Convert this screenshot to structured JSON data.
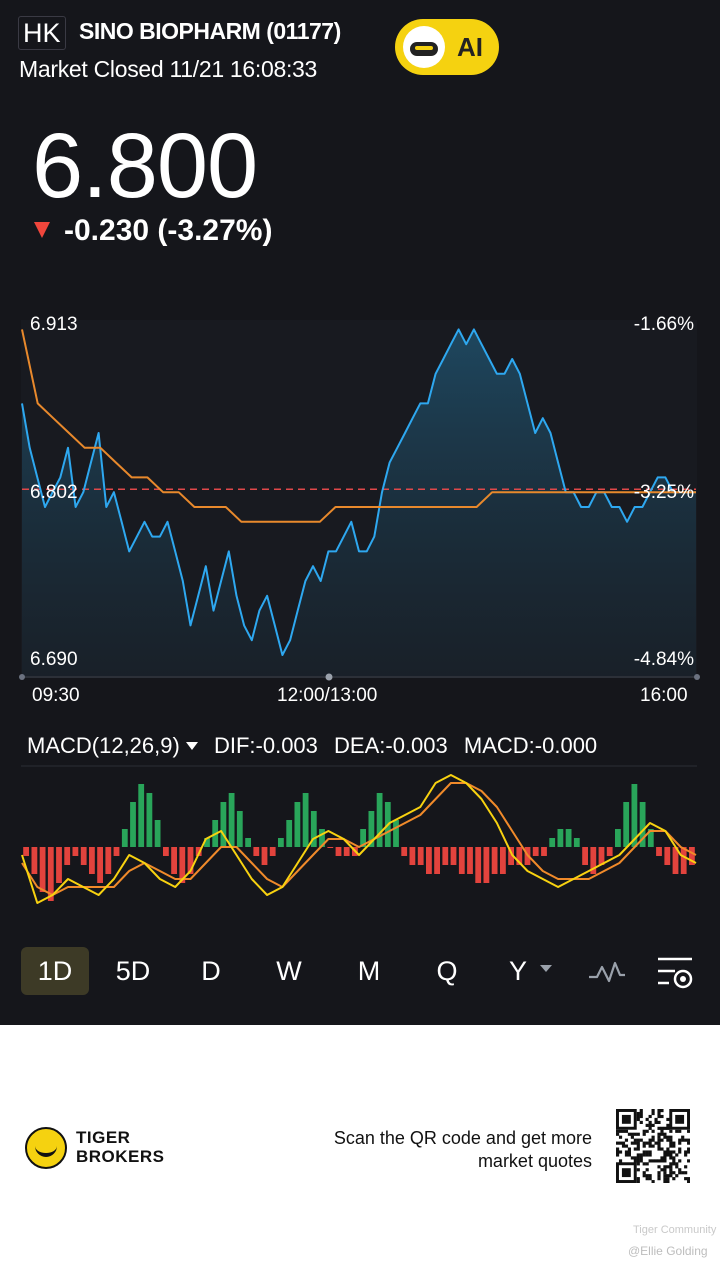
{
  "header": {
    "market": "HK",
    "stock_name": "SINO BIOPHARM (01177)",
    "status": "Market Closed 11/21 16:08:33",
    "ai_label": "AI"
  },
  "quote": {
    "price": "6.800",
    "change": "-0.230 (-3.27%)",
    "direction": "down",
    "down_color": "#f0463c"
  },
  "chart_data": {
    "type": "line",
    "y_left_ticks": [
      "6.913",
      "6.802",
      "6.690"
    ],
    "y_right_ticks": [
      "-1.66%",
      "-3.25%",
      "-4.84%"
    ],
    "x_ticks": [
      "09:30",
      "12:00/13:00",
      "16:00"
    ],
    "ylim": [
      6.69,
      6.913
    ],
    "reference_line": 6.802,
    "series": [
      {
        "color": "#2ea8f0",
        "values": [
          6.86,
          6.83,
          6.81,
          6.79,
          6.8,
          6.81,
          6.83,
          6.79,
          6.8,
          6.82,
          6.84,
          6.79,
          6.8,
          6.78,
          6.76,
          6.77,
          6.78,
          6.77,
          6.77,
          6.78,
          6.76,
          6.74,
          6.71,
          6.73,
          6.75,
          6.72,
          6.74,
          6.76,
          6.73,
          6.71,
          6.7,
          6.72,
          6.73,
          6.71,
          6.69,
          6.7,
          6.72,
          6.74,
          6.75,
          6.74,
          6.76,
          6.76,
          6.77,
          6.78,
          6.76,
          6.76,
          6.77,
          6.8,
          6.82,
          6.83,
          6.84,
          6.85,
          6.86,
          6.86,
          6.88,
          6.89,
          6.9,
          6.91,
          6.9,
          6.91,
          6.9,
          6.89,
          6.88,
          6.88,
          6.89,
          6.88,
          6.86,
          6.84,
          6.85,
          6.84,
          6.82,
          6.8,
          6.8,
          6.79,
          6.79,
          6.8,
          6.8,
          6.79,
          6.79,
          6.78,
          6.79,
          6.79,
          6.8,
          6.81,
          6.81,
          6.8,
          6.8,
          6.8,
          6.8
        ]
      },
      {
        "color": "#e8892c",
        "values": [
          6.91,
          6.86,
          6.85,
          6.84,
          6.83,
          6.83,
          6.82,
          6.81,
          6.81,
          6.8,
          6.8,
          6.79,
          6.79,
          6.79,
          6.78,
          6.78,
          6.78,
          6.78,
          6.78,
          6.78,
          6.79,
          6.79,
          6.79,
          6.79,
          6.79,
          6.79,
          6.79,
          6.79,
          6.79,
          6.79,
          6.8,
          6.8,
          6.8,
          6.8,
          6.8,
          6.8,
          6.8,
          6.8,
          6.8,
          6.8,
          6.8,
          6.8,
          6.8,
          6.8
        ]
      }
    ]
  },
  "macd": {
    "label": "MACD(12,26,9)",
    "dif": "DIF:-0.003",
    "dea": "DEA:-0.003",
    "macd": "MACD:-0.000",
    "hist": [
      -1,
      -3,
      -5,
      -6,
      -4,
      -2,
      -1,
      -2,
      -3,
      -4,
      -3,
      -1,
      2,
      5,
      7,
      6,
      3,
      -1,
      -3,
      -4,
      -3,
      -1,
      1,
      3,
      5,
      6,
      4,
      1,
      -1,
      -2,
      -1,
      1,
      3,
      5,
      6,
      4,
      2,
      0,
      -1,
      -1,
      -1,
      2,
      4,
      6,
      5,
      3,
      -1,
      -2,
      -2,
      -3,
      -3,
      -2,
      -2,
      -3,
      -3,
      -4,
      -4,
      -3,
      -3,
      -2,
      -2,
      -2,
      -1,
      -1,
      1,
      2,
      2,
      1,
      -2,
      -3,
      -2,
      -1,
      2,
      5,
      7,
      5,
      2,
      -1,
      -2,
      -3,
      -3,
      -2
    ],
    "dif_series": [
      -1,
      -7,
      -6,
      -4,
      -5,
      -6,
      -4,
      -1,
      -2,
      -4,
      -5,
      -3,
      1,
      2,
      -1,
      -4,
      -6,
      -5,
      -2,
      1,
      2,
      1,
      -1,
      1,
      3,
      4,
      5,
      8,
      9,
      8,
      6,
      3,
      -1,
      -3,
      -4,
      -5,
      -4,
      -3,
      -2,
      -1,
      1,
      3,
      2,
      -1,
      -2
    ],
    "dea_series": [
      -2,
      -5,
      -6,
      -5,
      -5,
      -5,
      -5,
      -3,
      -2,
      -3,
      -4,
      -4,
      -2,
      0,
      0,
      -2,
      -4,
      -5,
      -3,
      -1,
      1,
      1,
      0,
      1,
      2,
      3,
      4,
      6,
      8,
      8,
      7,
      5,
      2,
      -1,
      -3,
      -4,
      -4,
      -4,
      -3,
      -2,
      0,
      2,
      2,
      0,
      -1
    ],
    "colors": {
      "up": "#29a55a",
      "down": "#e2433d",
      "dif": "#f8d210",
      "dea": "#f08a2a"
    }
  },
  "tabs": [
    {
      "label": "1D",
      "active": true
    },
    {
      "label": "5D",
      "active": false
    },
    {
      "label": "D",
      "active": false
    },
    {
      "label": "W",
      "active": false
    },
    {
      "label": "M",
      "active": false
    },
    {
      "label": "Q",
      "active": false
    },
    {
      "label": "Y",
      "active": false
    }
  ],
  "icons": {
    "indicator": "pulse-icon",
    "settings": "chart-settings-icon"
  },
  "footer": {
    "brand_line1": "TIGER",
    "brand_line2": "BROKERS",
    "scan_line1": "Scan the QR code and get more",
    "scan_line2": "market quotes",
    "watermark_community": "Tiger Community",
    "watermark_user": "@Ellie Golding"
  }
}
